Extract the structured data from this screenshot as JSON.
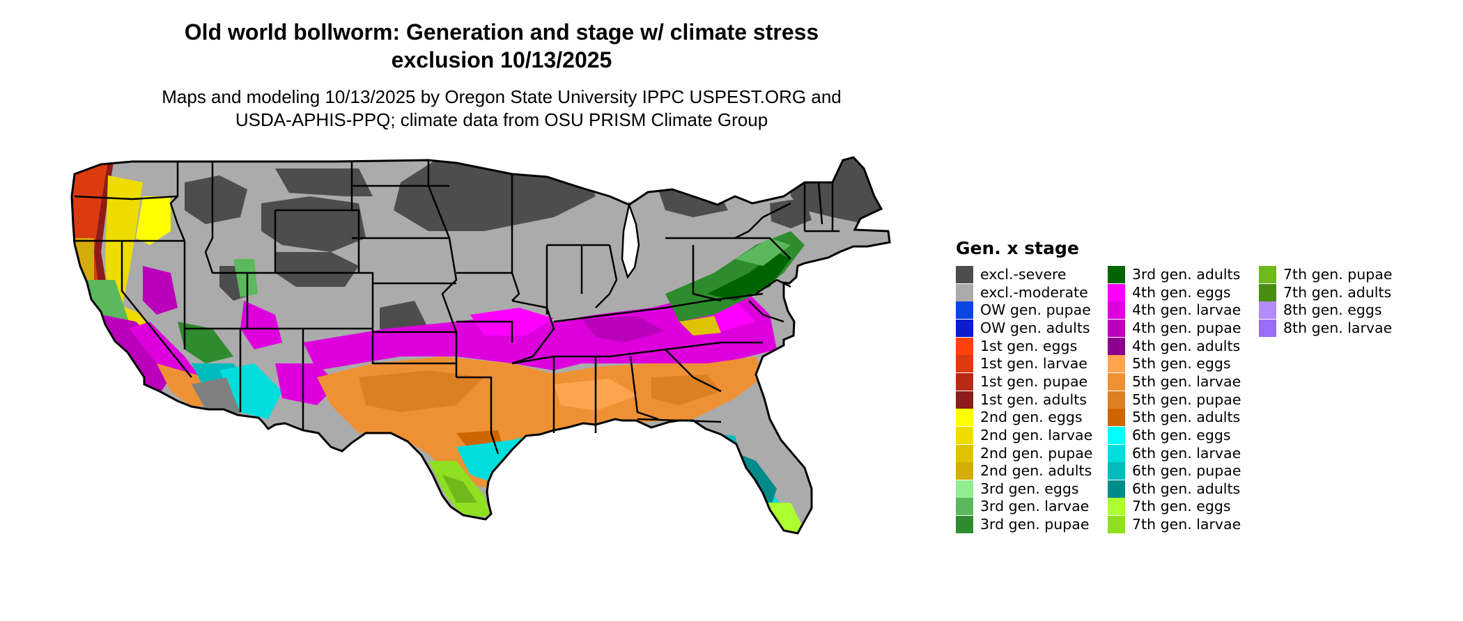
{
  "title": {
    "line1": "Old world bollworm: Generation and stage w/ climate stress",
    "line2": "exclusion 10/13/2025"
  },
  "subtitle": {
    "line1": "Maps and modeling 10/13/2025 by Oregon State University IPPC USPEST.ORG and",
    "line2": "USDA-APHIS-PPQ; climate data from OSU PRISM Climate Group"
  },
  "legend": {
    "title": "Gen. x stage",
    "columns": [
      [
        {
          "label": "excl.-severe",
          "color": "#4d4d4d"
        },
        {
          "label": "excl.-moderate",
          "color": "#ababab"
        },
        {
          "label": "OW gen. pupae",
          "color": "#0a46e0"
        },
        {
          "label": "OW gen. adults",
          "color": "#0a1ccc"
        },
        {
          "label": "1st gen. eggs",
          "color": "#ff420a"
        },
        {
          "label": "1st gen. larvae",
          "color": "#dc3a10"
        },
        {
          "label": "1st gen. pupae",
          "color": "#b82a14"
        },
        {
          "label": "1st gen. adults",
          "color": "#8c1c1c"
        },
        {
          "label": "2nd gen. eggs",
          "color": "#ffff00"
        },
        {
          "label": "2nd gen. larvae",
          "color": "#eedc00"
        },
        {
          "label": "2nd gen. pupae",
          "color": "#dec400"
        },
        {
          "label": "2nd gen. adults",
          "color": "#d4ac0c"
        },
        {
          "label": "3rd gen. eggs",
          "color": "#90ee90"
        },
        {
          "label": "3rd gen. larvae",
          "color": "#5cb85c"
        },
        {
          "label": "3rd gen. pupae",
          "color": "#2e8b2e"
        }
      ],
      [
        {
          "label": "3rd gen. adults",
          "color": "#006400"
        },
        {
          "label": "4th gen. eggs",
          "color": "#ff00ff"
        },
        {
          "label": "4th gen. larvae",
          "color": "#dd00dd"
        },
        {
          "label": "4th gen. pupae",
          "color": "#bb00bb"
        },
        {
          "label": "4th gen. adults",
          "color": "#8b008b"
        },
        {
          "label": "5th gen. eggs",
          "color": "#ffa54f"
        },
        {
          "label": "5th gen. larvae",
          "color": "#ee9135"
        },
        {
          "label": "5th gen. pupae",
          "color": "#dc8024"
        },
        {
          "label": "5th gen. adults",
          "color": "#cd6600"
        },
        {
          "label": "6th gen. eggs",
          "color": "#00ffff"
        },
        {
          "label": "6th gen. larvae",
          "color": "#00dddd"
        },
        {
          "label": "6th gen. pupae",
          "color": "#00bbbb"
        },
        {
          "label": "6th gen. adults",
          "color": "#008b8b"
        },
        {
          "label": "7th gen. eggs",
          "color": "#adff2f"
        },
        {
          "label": "7th gen. larvae",
          "color": "#8ee020"
        }
      ],
      [
        {
          "label": "7th gen. pupae",
          "color": "#6eb91c"
        },
        {
          "label": "7th gen. adults",
          "color": "#4a8c10"
        },
        {
          "label": "8th gen. eggs",
          "color": "#b28cff"
        },
        {
          "label": "8th gen. larvae",
          "color": "#9b6cf5"
        }
      ]
    ]
  }
}
